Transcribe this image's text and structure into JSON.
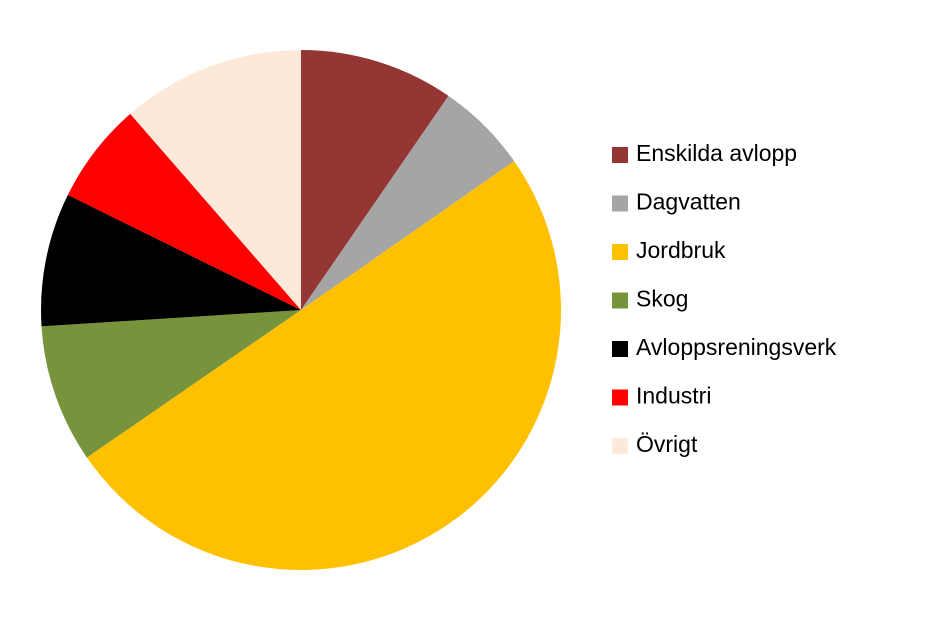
{
  "chart_data": {
    "type": "pie",
    "categories": [
      "Enskilda avlopp",
      "Dagvatten",
      "Jordbruk",
      "Skog",
      "Avloppsreningsverk",
      "Industri",
      "Övrigt"
    ],
    "values": [
      9.6,
      5.7,
      50.1,
      8.6,
      8.3,
      6.3,
      11.4
    ],
    "colors": [
      "#943634",
      "#a5a5a5",
      "#ffc000",
      "#77933c",
      "#000000",
      "#ff0000",
      "#fde9d9"
    ],
    "legend": "right"
  }
}
